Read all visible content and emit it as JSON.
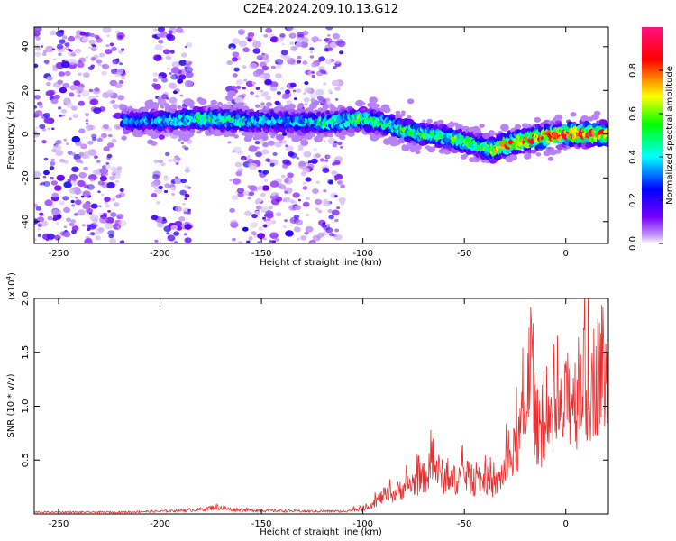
{
  "title": "C2E4.2024.209.10.13.G12",
  "chart_data": [
    {
      "type": "heatmap",
      "xlabel": "Height of straight line (km)",
      "ylabel": "Frequency (Hz)",
      "xlim": [
        -262,
        21
      ],
      "ylim": [
        -50,
        49
      ],
      "x_ticks": [
        -250,
        -200,
        -150,
        -100,
        -50,
        0
      ],
      "y_ticks": [
        -40,
        -20,
        0,
        20,
        40
      ],
      "colorbar": {
        "label": "Normalized spectral amplitude",
        "range": [
          0,
          1
        ],
        "ticks": [
          "0.0",
          "0.2",
          "0.4",
          "0.6",
          "0.8"
        ],
        "colormap": [
          "#ffffff",
          "#8000ff",
          "#0000ff",
          "#00ffff",
          "#00ff00",
          "#ffff00",
          "#ff0000",
          "#ff0080"
        ]
      },
      "ridge": {
        "description": "dominant signal track (frequency vs height)",
        "x": [
          -218,
          -200,
          -180,
          -160,
          -140,
          -120,
          -100,
          -90,
          -80,
          -70,
          -60,
          -50,
          -40,
          -35,
          -30,
          -20,
          -10,
          0,
          10,
          21
        ],
        "y": [
          6,
          6,
          7,
          6,
          6,
          5,
          7,
          5,
          2,
          0,
          -1,
          -3,
          -6,
          -7,
          -5,
          -3,
          -1,
          0,
          0,
          0
        ],
        "amplitude": [
          0.35,
          0.4,
          0.55,
          0.5,
          0.4,
          0.5,
          0.6,
          0.55,
          0.55,
          0.6,
          0.6,
          0.6,
          0.6,
          0.75,
          0.8,
          0.9,
          0.95,
          1.0,
          0.95,
          0.9
        ]
      },
      "noise_bands": [
        [
          -262,
          -218
        ],
        [
          -203,
          -185
        ],
        [
          -166,
          -110
        ]
      ]
    },
    {
      "type": "line",
      "xlabel": "Height of straight line (km)",
      "ylabel": "SNR (10 * v/v)",
      "y_scale_label": "(x10",
      "y_scale_exp": "4",
      "y_scale_close": ")",
      "xlim": [
        -262,
        21
      ],
      "ylim": [
        0,
        2.0
      ],
      "x_ticks": [
        -250,
        -200,
        -150,
        -100,
        -50,
        0
      ],
      "y_ticks": [
        "0.5",
        "1.0",
        "1.5",
        "2.0"
      ],
      "color": "#e83030",
      "series": [
        {
          "x": [
            -262,
            -240,
            -220,
            -200,
            -180,
            -172,
            -165,
            -150,
            -130,
            -110,
            -100,
            -95,
            -90,
            -85,
            -80,
            -75,
            -70,
            -65,
            -60,
            -55,
            -50,
            -45,
            -40,
            -35,
            -30,
            -25,
            -22,
            -20,
            -18,
            -15,
            -12,
            -10,
            -8,
            -5,
            -2,
            0,
            3,
            5,
            8,
            10,
            12,
            15,
            18,
            21
          ],
          "y": [
            0.02,
            0.02,
            0.02,
            0.03,
            0.05,
            0.08,
            0.05,
            0.04,
            0.03,
            0.03,
            0.06,
            0.12,
            0.2,
            0.22,
            0.3,
            0.35,
            0.4,
            0.55,
            0.4,
            0.38,
            0.45,
            0.35,
            0.4,
            0.3,
            0.5,
            0.7,
            0.95,
            1.05,
            1.95,
            1.0,
            0.95,
            0.9,
            0.85,
            1.05,
            1.1,
            1.2,
            1.4,
            1.25,
            1.6,
            1.3,
            1.45,
            1.55,
            1.7,
            1.4
          ]
        }
      ]
    }
  ]
}
